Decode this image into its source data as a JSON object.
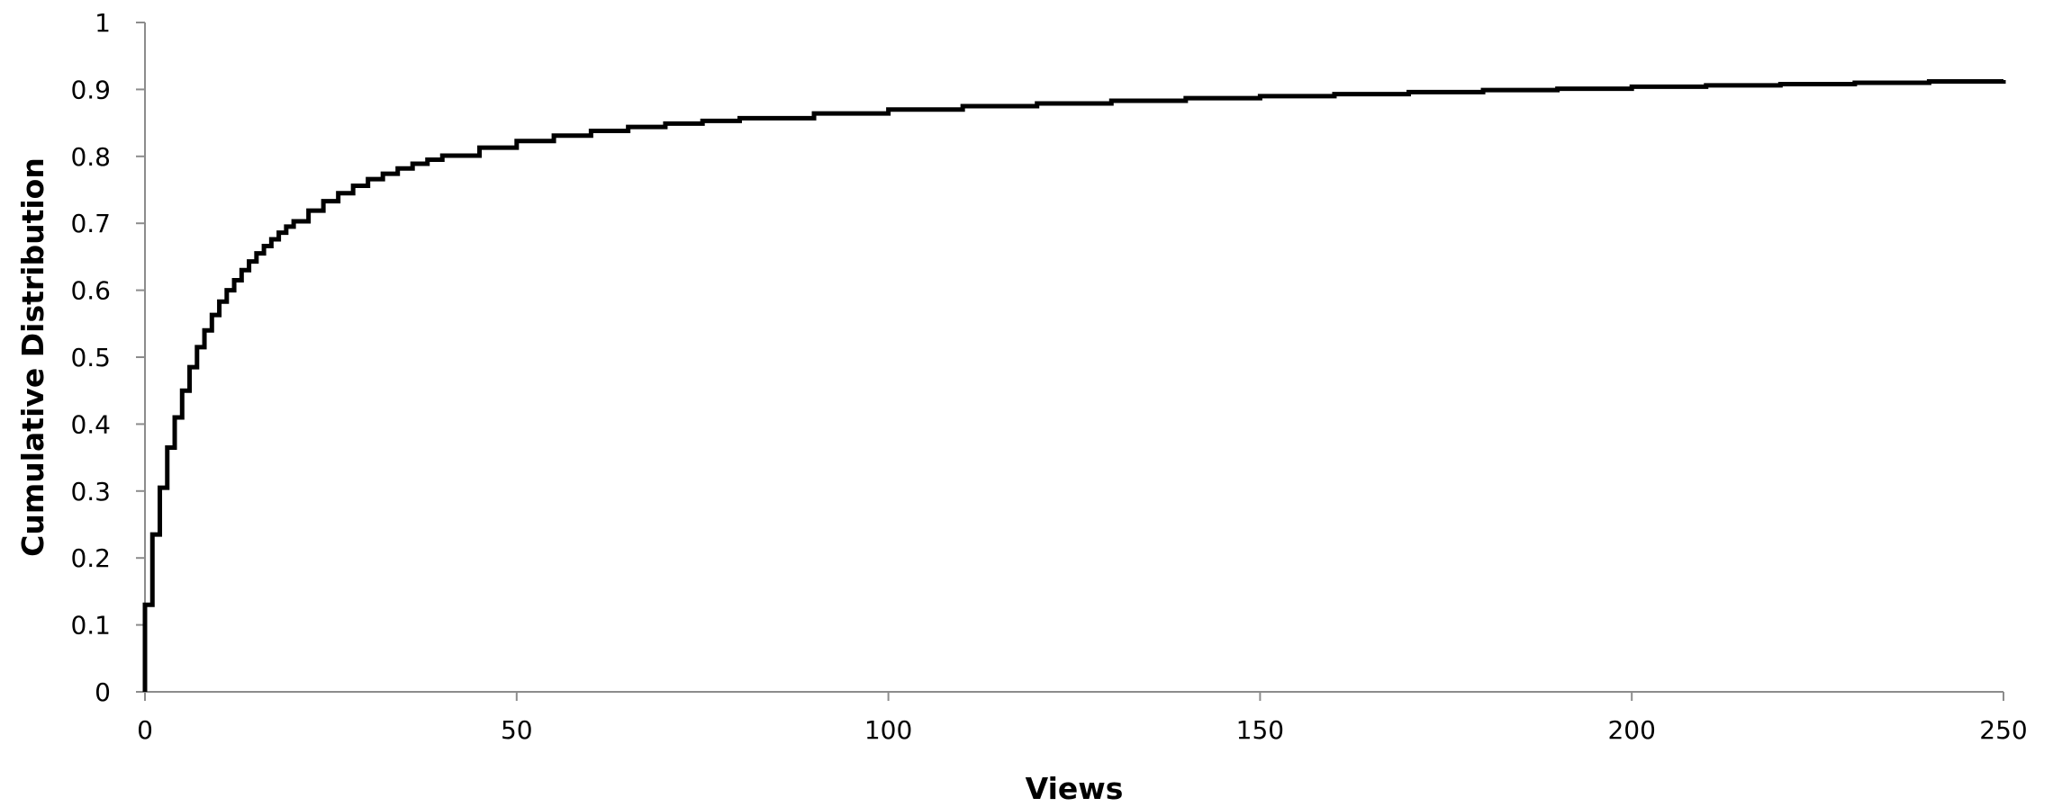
{
  "chart_data": {
    "type": "line",
    "title": "",
    "xlabel": "Views",
    "ylabel": "Cumulative Distribution",
    "xlim": [
      0,
      250
    ],
    "ylim": [
      0,
      1
    ],
    "x_ticks": [
      0,
      50,
      100,
      150,
      200,
      250
    ],
    "x_tick_labels": [
      "0",
      "50",
      "100",
      "150",
      "200",
      "250"
    ],
    "y_ticks": [
      0,
      0.1,
      0.2,
      0.3,
      0.4,
      0.5,
      0.6,
      0.7,
      0.8,
      0.9,
      1
    ],
    "y_tick_labels": [
      "0",
      "0.1",
      "0.2",
      "0.3",
      "0.4",
      "0.5",
      "0.6",
      "0.7",
      "0.8",
      "0.9",
      "1"
    ],
    "grid": false,
    "legend": "none",
    "step": true,
    "line_color": "#000000",
    "series": [
      {
        "x": [
          0,
          1,
          2,
          3,
          4,
          5,
          6,
          7,
          8,
          9,
          10,
          11,
          12,
          13,
          14,
          15,
          16,
          17,
          18,
          19,
          20,
          22,
          24,
          26,
          28,
          30,
          32,
          34,
          36,
          38,
          40,
          45,
          50,
          55,
          60,
          65,
          70,
          75,
          80,
          90,
          100,
          110,
          120,
          130,
          140,
          150,
          160,
          170,
          180,
          190,
          200,
          210,
          220,
          230,
          240,
          250
        ],
        "y": [
          0.13,
          0.235,
          0.305,
          0.365,
          0.41,
          0.45,
          0.485,
          0.515,
          0.54,
          0.563,
          0.583,
          0.6,
          0.615,
          0.63,
          0.643,
          0.655,
          0.666,
          0.676,
          0.686,
          0.695,
          0.703,
          0.719,
          0.733,
          0.745,
          0.756,
          0.766,
          0.774,
          0.782,
          0.789,
          0.795,
          0.801,
          0.813,
          0.823,
          0.831,
          0.838,
          0.844,
          0.849,
          0.853,
          0.857,
          0.864,
          0.87,
          0.875,
          0.879,
          0.883,
          0.887,
          0.89,
          0.893,
          0.896,
          0.899,
          0.901,
          0.904,
          0.906,
          0.908,
          0.91,
          0.912,
          0.914
        ]
      }
    ]
  }
}
